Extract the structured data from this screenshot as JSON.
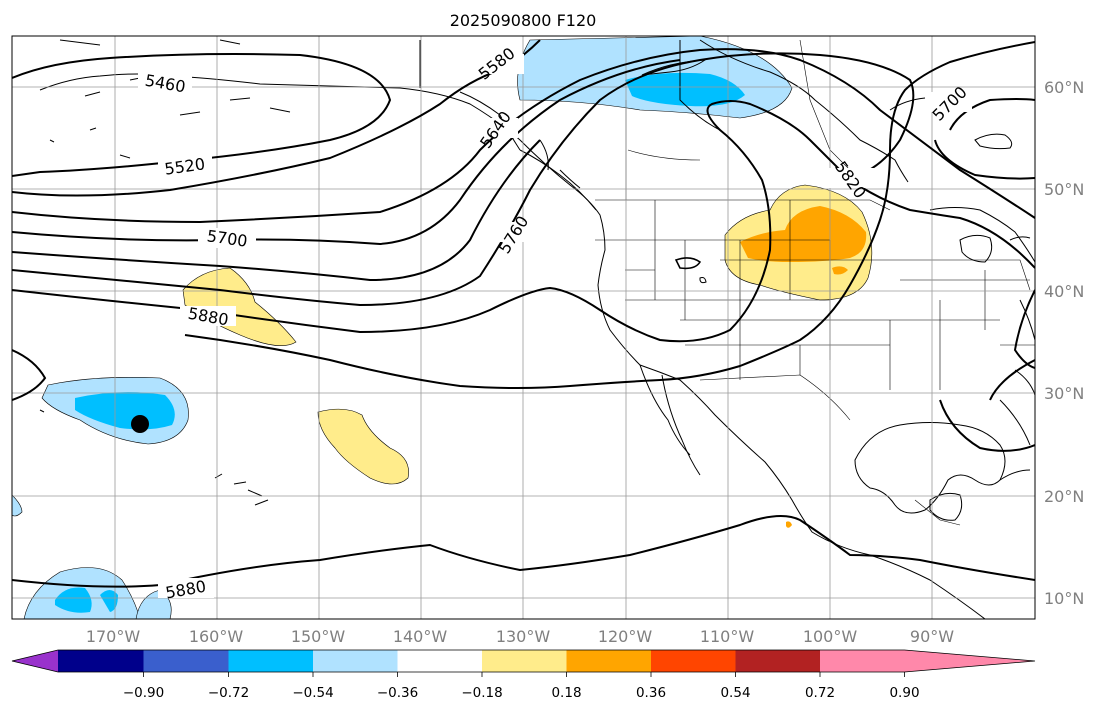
{
  "title": "2025090800 F120",
  "map": {
    "lon_labels": [
      "170°W",
      "160°W",
      "150°W",
      "140°W",
      "130°W",
      "120°W",
      "110°W",
      "100°W",
      "90°W"
    ],
    "lat_labels": [
      "60°N",
      "50°N",
      "40°N",
      "30°N",
      "20°N",
      "10°N"
    ],
    "contour_labels": [
      "5460",
      "5520",
      "5580",
      "5640",
      "5700",
      "5760",
      "5820",
      "5700",
      "5880",
      "5880"
    ],
    "marker": "filled-circle"
  },
  "colorbar": {
    "ticks": [
      "−0.90",
      "−0.72",
      "−0.54",
      "−0.36",
      "−0.18",
      "0.18",
      "0.36",
      "0.54",
      "0.72",
      "0.90"
    ],
    "colors": [
      "#9932cc",
      "#00008b",
      "#3a5fcd",
      "#00bfff",
      "#b0e2ff",
      "#ffffff",
      "#ffec8b",
      "#ffa500",
      "#ff4500",
      "#b22222",
      "#ff88aa"
    ]
  }
}
